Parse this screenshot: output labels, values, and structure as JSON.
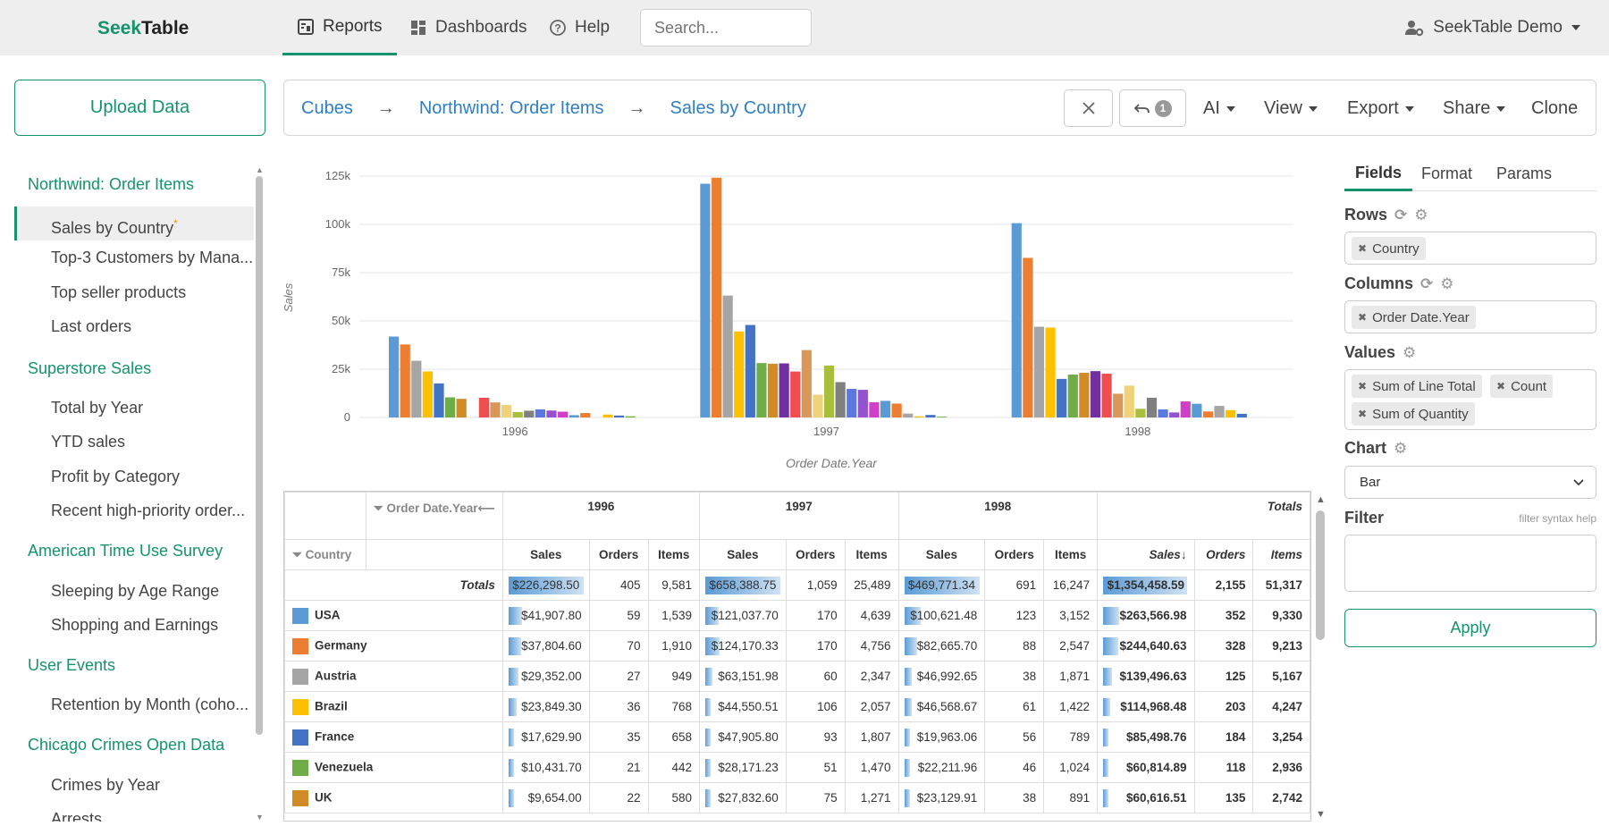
{
  "app": {
    "logo_seek": "Seek",
    "logo_table": "Table"
  },
  "nav": {
    "reports": "Reports",
    "dashboards": "Dashboards",
    "help": "Help",
    "search_placeholder": "Search...",
    "user": "SeekTable Demo"
  },
  "sidebar": {
    "upload": "Upload Data",
    "groups": [
      {
        "title": "Northwind: Order Items",
        "items": [
          "Sales by Country",
          "Top-3 Customers by Mana...",
          "Top seller products",
          "Last orders"
        ]
      },
      {
        "title": "Superstore Sales",
        "items": [
          "Total by Year",
          "YTD sales",
          "Profit by Category",
          "Recent high-priority order..."
        ]
      },
      {
        "title": "American Time Use Survey",
        "items": [
          "Sleeping by Age Range",
          "Shopping and Earnings"
        ]
      },
      {
        "title": "User Events",
        "items": [
          "Retention by Month (coho..."
        ]
      },
      {
        "title": "Chicago Crimes Open Data",
        "items": [
          "Crimes by Year",
          "Arrests"
        ]
      }
    ],
    "modified_mark": "*"
  },
  "breadcrumb": {
    "cubes": "Cubes",
    "cube": "Northwind: Order Items",
    "report": "Sales by Country",
    "arrow": "→"
  },
  "toolbar": {
    "undo_count": "1",
    "ai": "AI",
    "view": "View",
    "export": "Export",
    "share": "Share",
    "clone": "Clone"
  },
  "chart_data": {
    "type": "bar",
    "title": "",
    "xlabel": "Order Date.Year",
    "ylabel": "Sales",
    "ylim": [
      0,
      125000
    ],
    "yticks": [
      "0",
      "25k",
      "50k",
      "75k",
      "100k",
      "125k"
    ],
    "categories": [
      "1996",
      "1997",
      "1998"
    ],
    "colors": [
      "#5b9bd5",
      "#ed7d31",
      "#a5a5a5",
      "#ffc000",
      "#4472c4",
      "#70ad47",
      "#d08b24",
      "#7030a0",
      "#f04e4e",
      "#d9975a",
      "#efd27a",
      "#a7bf3c",
      "#808080",
      "#5b78e0",
      "#9452cf",
      "#cf3fc8",
      "#5b9bd5",
      "#ed7d31",
      "#a5a5a5",
      "#ffc000",
      "#4472c4",
      "#70ad47"
    ],
    "series": [
      [
        41907.8,
        37804.6,
        29352.0,
        23849.3,
        17629.9,
        10431.7,
        9654.0,
        0,
        10200,
        7800,
        6500,
        2800,
        3500,
        4200,
        3600,
        3000,
        1200,
        2300,
        0,
        1500,
        1000,
        600
      ],
      [
        121037.7,
        124170.33,
        63151.98,
        44550.51,
        47905.8,
        28171.23,
        27832.6,
        28000,
        23800,
        34900,
        11800,
        26900,
        18300,
        14800,
        14300,
        7900,
        8600,
        7200,
        2000,
        600,
        1300,
        400
      ],
      [
        100621.48,
        82665.7,
        46992.65,
        46568.67,
        19963.06,
        22211.96,
        23129.91,
        24000,
        22700,
        12300,
        16500,
        4500,
        10200,
        4200,
        2600,
        8300,
        7100,
        3100,
        6000,
        3800,
        1900,
        0
      ]
    ]
  },
  "table": {
    "col_dim": "Order Date.Year",
    "row_dim": "Country",
    "years": [
      "1996",
      "1997",
      "1998"
    ],
    "totals_label": "Totals",
    "measures": [
      "Sales",
      "Orders",
      "Items"
    ],
    "sort_marker": "↓",
    "totals_row": [
      "$226,298.50",
      "405",
      "9,581",
      "$658,388.75",
      "1,059",
      "25,489",
      "$469,771.34",
      "691",
      "16,247",
      "$1,354,458.59",
      "2,155",
      "51,317"
    ],
    "rows": [
      {
        "country": "USA",
        "color": "#5b9bd5",
        "values": [
          "$41,907.80",
          "59",
          "1,539",
          "$121,037.70",
          "170",
          "4,639",
          "$100,621.48",
          "123",
          "3,152",
          "$263,566.98",
          "352",
          "9,330"
        ],
        "bars": [
          0.185,
          0.184,
          0.214,
          0.195
        ]
      },
      {
        "country": "Germany",
        "color": "#ed7d31",
        "values": [
          "$37,804.60",
          "70",
          "1,910",
          "$124,170.33",
          "170",
          "4,756",
          "$82,665.70",
          "88",
          "2,547",
          "$244,640.63",
          "328",
          "9,213"
        ],
        "bars": [
          0.167,
          0.189,
          0.176,
          0.181
        ]
      },
      {
        "country": "Austria",
        "color": "#a5a5a5",
        "values": [
          "$29,352.00",
          "27",
          "949",
          "$63,151.98",
          "60",
          "2,347",
          "$46,992.65",
          "38",
          "1,871",
          "$139,496.63",
          "125",
          "5,167"
        ],
        "bars": [
          0.13,
          0.096,
          0.1,
          0.103
        ]
      },
      {
        "country": "Brazil",
        "color": "#ffc000",
        "values": [
          "$23,849.30",
          "36",
          "768",
          "$44,550.51",
          "106",
          "2,057",
          "$46,568.67",
          "61",
          "1,422",
          "$114,968.48",
          "203",
          "4,247"
        ],
        "bars": [
          0.105,
          0.068,
          0.099,
          0.085
        ]
      },
      {
        "country": "France",
        "color": "#4472c4",
        "values": [
          "$17,629.90",
          "35",
          "658",
          "$47,905.80",
          "93",
          "1,807",
          "$19,963.06",
          "56",
          "789",
          "$85,498.76",
          "184",
          "3,254"
        ],
        "bars": [
          0.078,
          0.073,
          0.042,
          0.063
        ]
      },
      {
        "country": "Venezuela",
        "color": "#70ad47",
        "values": [
          "$10,431.70",
          "21",
          "442",
          "$28,171.23",
          "51",
          "1,470",
          "$22,211.96",
          "46",
          "1,024",
          "$60,814.89",
          "118",
          "2,936"
        ],
        "bars": [
          0.046,
          0.043,
          0.047,
          0.045
        ]
      },
      {
        "country": "UK",
        "color": "#d08b24",
        "values": [
          "$9,654.00",
          "22",
          "580",
          "$27,832.60",
          "75",
          "1,271",
          "$23,129.91",
          "38",
          "891",
          "$60,616.51",
          "135",
          "2,742"
        ],
        "bars": [
          0.043,
          0.042,
          0.049,
          0.045
        ]
      }
    ]
  },
  "panel": {
    "tabs": [
      "Fields",
      "Format",
      "Params"
    ],
    "rows_label": "Rows",
    "rows_fields": [
      "Country"
    ],
    "columns_label": "Columns",
    "columns_fields": [
      "Order Date.Year"
    ],
    "values_label": "Values",
    "values_fields": [
      "Sum of Line Total",
      "Count",
      "Sum of Quantity"
    ],
    "chart_label": "Chart",
    "chart_type": "Bar",
    "filter_label": "Filter",
    "filter_help": "filter syntax help",
    "apply": "Apply"
  }
}
